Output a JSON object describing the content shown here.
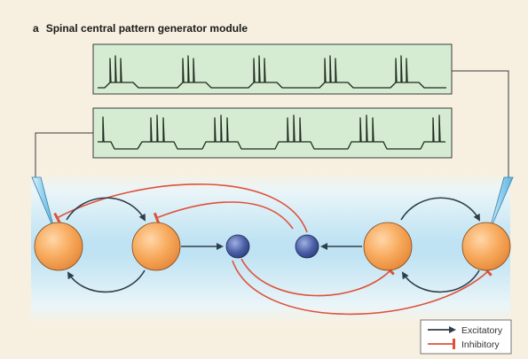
{
  "figure": {
    "panel_letter": "a",
    "title": "Spinal central pattern generator module"
  },
  "legend": {
    "excitatory_label": "Excitatory",
    "inhibitory_label": "Inhibitory"
  },
  "colors": {
    "background": "#f7f0e1",
    "trace_panel_fill": "#d6ecd2",
    "trace_line": "#1e2a1e",
    "excitatory": "#2f3f4a",
    "inhibitory": "#e0503a",
    "motor_neuron": "#f5a65a",
    "interneuron": "#4a5fa8",
    "spinal_band": "#bfe3f3"
  },
  "icons": {
    "recording_electrode_left": "electrode-icon",
    "recording_electrode_right": "electrode-icon"
  }
}
